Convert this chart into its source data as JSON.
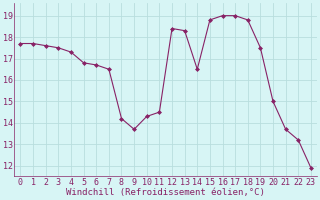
{
  "x": [
    0,
    1,
    2,
    3,
    4,
    5,
    6,
    7,
    8,
    9,
    10,
    11,
    12,
    13,
    14,
    15,
    16,
    17,
    18,
    19,
    20,
    21,
    22,
    23
  ],
  "y": [
    17.7,
    17.7,
    17.6,
    17.5,
    17.3,
    16.8,
    16.7,
    16.5,
    14.2,
    13.7,
    14.3,
    14.5,
    18.4,
    18.3,
    16.5,
    18.8,
    19.0,
    19.0,
    18.8,
    17.5,
    15.0,
    13.7,
    13.2,
    11.9
  ],
  "line_color": "#882266",
  "marker": "D",
  "marker_size": 2.0,
  "bg_color": "#d7f5f5",
  "grid_color": "#b8dede",
  "xlabel": "Windchill (Refroidissement éolien,°C)",
  "xlabel_color": "#882266",
  "xlabel_fontsize": 6.5,
  "tick_color": "#882266",
  "tick_fontsize": 6.0,
  "ylim": [
    11.5,
    19.6
  ],
  "yticks": [
    12,
    13,
    14,
    15,
    16,
    17,
    18,
    19
  ],
  "xlim": [
    -0.5,
    23.5
  ],
  "xticks": [
    0,
    1,
    2,
    3,
    4,
    5,
    6,
    7,
    8,
    9,
    10,
    11,
    12,
    13,
    14,
    15,
    16,
    17,
    18,
    19,
    20,
    21,
    22,
    23
  ]
}
